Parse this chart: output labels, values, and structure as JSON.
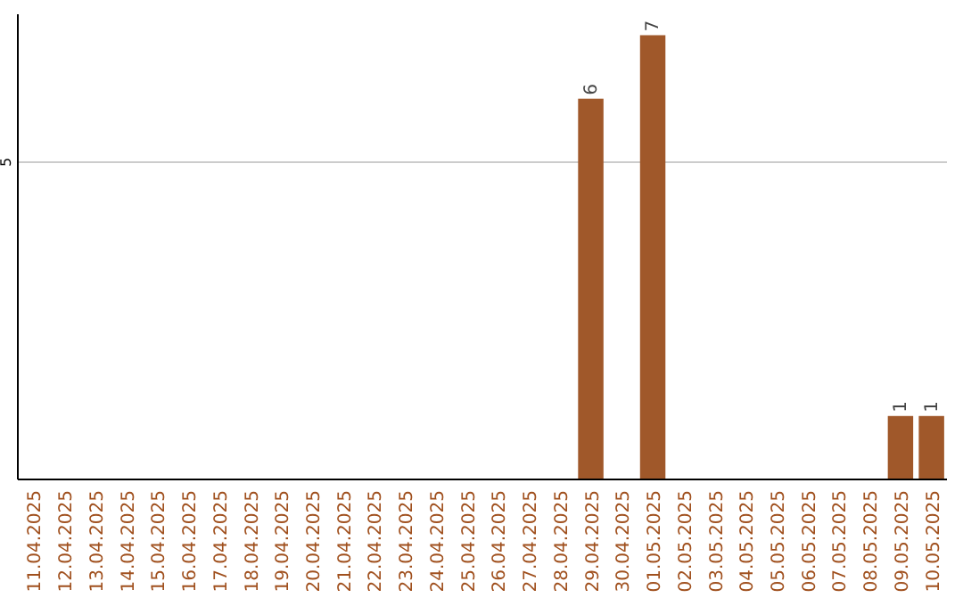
{
  "chart_data": {
    "type": "bar",
    "categories": [
      "11.04.2025",
      "12.04.2025",
      "13.04.2025",
      "14.04.2025",
      "15.04.2025",
      "16.04.2025",
      "17.04.2025",
      "18.04.2025",
      "19.04.2025",
      "20.04.2025",
      "21.04.2025",
      "22.04.2025",
      "23.04.2025",
      "24.04.2025",
      "25.04.2025",
      "26.04.2025",
      "27.04.2025",
      "28.04.2025",
      "29.04.2025",
      "30.04.2025",
      "01.05.2025",
      "02.05.2025",
      "03.05.2025",
      "04.05.2025",
      "05.05.2025",
      "06.05.2025",
      "07.05.2025",
      "08.05.2025",
      "09.05.2025",
      "10.05.2025"
    ],
    "values": [
      null,
      null,
      null,
      null,
      null,
      null,
      null,
      null,
      null,
      null,
      null,
      null,
      null,
      null,
      null,
      null,
      null,
      null,
      6,
      null,
      7,
      null,
      null,
      null,
      null,
      null,
      null,
      null,
      1,
      1
    ],
    "color": "#a0582a",
    "ylim": [
      0,
      7.33
    ],
    "yticks": [
      5
    ],
    "grid": "y",
    "data_labels": true
  }
}
